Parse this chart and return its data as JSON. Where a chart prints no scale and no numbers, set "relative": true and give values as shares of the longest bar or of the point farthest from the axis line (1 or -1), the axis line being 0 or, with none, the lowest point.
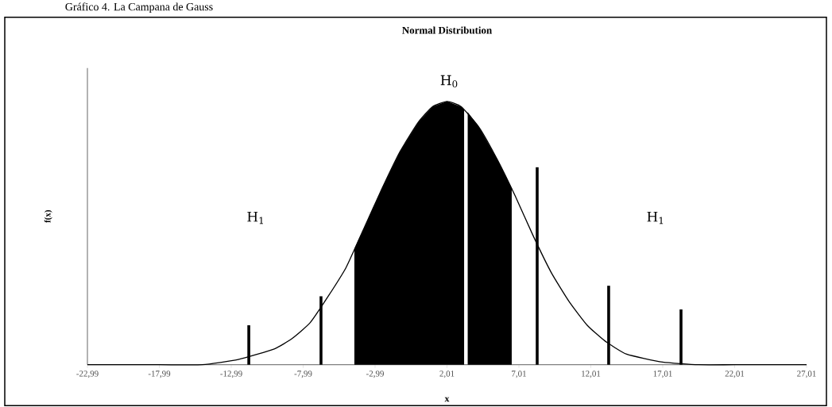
{
  "chart_data": {
    "type": "line",
    "title": "Normal Distribution",
    "xlabel": "x",
    "ylabel": "f(x)",
    "relative": true,
    "marker": "none",
    "line_style": "solid",
    "xlim": [
      -22.99,
      27.01
    ],
    "xticks": [
      {
        "value": -22.99,
        "label": "-22,99"
      },
      {
        "value": -17.99,
        "label": "-17,99"
      },
      {
        "value": -12.99,
        "label": "-12,99"
      },
      {
        "value": -7.99,
        "label": "-7,99"
      },
      {
        "value": -2.99,
        "label": "-2,99"
      },
      {
        "value": 2.01,
        "label": "2,01"
      },
      {
        "value": 7.01,
        "label": "7,01"
      },
      {
        "value": 12.01,
        "label": "12,01"
      },
      {
        "value": 17.01,
        "label": "17,01"
      },
      {
        "value": 22.01,
        "label": "22,01"
      },
      {
        "value": 27.01,
        "label": "27,01"
      }
    ],
    "series": [
      {
        "type": "area",
        "color": "#000000",
        "x": [
          -4.43,
          -3.75,
          -2.5,
          -1.25,
          0,
          1,
          2.01,
          3,
          3.2
        ],
        "values": [
          0.44,
          0.52,
          0.67,
          0.81,
          0.92,
          0.98,
          1,
          0.98,
          0.97
        ]
      },
      {
        "type": "area",
        "color": "#000000",
        "x": [
          3.45,
          4.26,
          5.5,
          6.51
        ],
        "values": [
          0.96,
          0.9,
          0.78,
          0.67
        ]
      },
      {
        "color": "#000000",
        "x": [
          -22.99,
          -17.99,
          -15,
          -12.5,
          -10,
          -8.75,
          -7.5,
          -6.25,
          -5,
          -3.75,
          -2.5,
          -1.25,
          0,
          1,
          2.01,
          3,
          4.26,
          5.5,
          6.76,
          8,
          9.26,
          10.5,
          11.76,
          13,
          14.5,
          17,
          19.5,
          22.01,
          27.01
        ],
        "values": [
          0,
          0,
          0,
          0.02,
          0.06,
          0.1,
          0.16,
          0.26,
          0.37,
          0.52,
          0.67,
          0.81,
          0.92,
          0.98,
          1,
          0.98,
          0.9,
          0.78,
          0.64,
          0.49,
          0.35,
          0.24,
          0.15,
          0.09,
          0.04,
          0.01,
          0,
          0,
          0
        ]
      },
      {
        "type": "bar",
        "color": "#000000",
        "x": [
          -11.77,
          -6.75,
          8.28,
          13.25,
          18.28
        ],
        "values": [
          0.15,
          0.26,
          0.75,
          0.3,
          0.21
        ]
      }
    ],
    "annotations": [
      "H$_{0}$",
      "H$_{1}$",
      "H$_{1}$",
      "Gráfico 4. La Campana de Gauss"
    ]
  }
}
